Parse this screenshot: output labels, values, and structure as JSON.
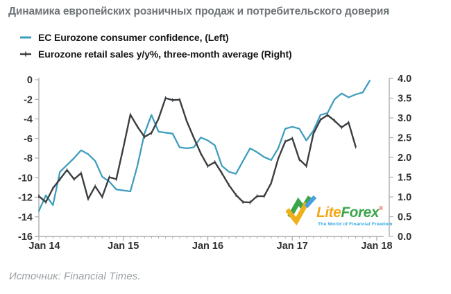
{
  "title": "Динамика европейских розничных продаж и потребительского доверия",
  "legend": [
    {
      "label": "EC Eurozone consumer confidence, (Left)",
      "color": "#3f9dbe",
      "marker": "line"
    },
    {
      "label": "Eurozone retail sales y/y%, three-month average (Right)",
      "color": "#3a3e41",
      "marker": "line-plus"
    }
  ],
  "chart_data": {
    "type": "line",
    "title": "",
    "x_start": "Jan 2014",
    "frequency": "monthly",
    "x_tick_labels": [
      "Jan 14",
      "Jan 15",
      "Jan 16",
      "Jan 17",
      "Jan 18"
    ],
    "left_axis": {
      "label": "EC Eurozone consumer confidence",
      "range": [
        -16,
        0
      ],
      "tick_labels": [
        "0",
        "-2",
        "-4",
        "-6",
        "-8",
        "-10",
        "-12",
        "-14",
        "-16"
      ]
    },
    "right_axis": {
      "label": "Eurozone retail sales y/y%, 3-month average",
      "range": [
        0.0,
        4.0
      ],
      "tick_labels": [
        "4.0",
        "3.5",
        "3.0",
        "2.5",
        "2.0",
        "1.5",
        "1.0",
        "0.5",
        "0.0"
      ]
    },
    "grid": false,
    "legend_position": "top-left",
    "series": [
      {
        "name": "EC Eurozone consumer confidence",
        "axis": "left",
        "color": "#3f9dbe",
        "marker": "none",
        "values": [
          -13.4,
          -11.8,
          -12.8,
          -9.4,
          -8.7,
          -8.0,
          -7.2,
          -7.6,
          -8.3,
          -9.9,
          -10.4,
          -11.2,
          -11.3,
          -11.4,
          -8.8,
          -5.5,
          -3.6,
          -5.3,
          -5.4,
          -5.5,
          -6.9,
          -7.0,
          -6.9,
          -5.9,
          -6.2,
          -6.7,
          -8.8,
          -9.4,
          -9.6,
          -8.3,
          -7.0,
          -7.4,
          -7.9,
          -8.2,
          -7.0,
          -5.0,
          -4.8,
          -5.0,
          -6.2,
          -5.2,
          -3.6,
          -3.4,
          -2.0,
          -1.4,
          -1.8,
          -1.5,
          -1.3,
          -0.1
        ]
      },
      {
        "name": "Eurozone retail sales y/y%, three-month average",
        "axis": "right",
        "color": "#3a3e41",
        "marker": "tick",
        "values": [
          1.02,
          0.87,
          1.22,
          1.45,
          1.68,
          1.45,
          1.6,
          0.95,
          1.27,
          1.0,
          1.5,
          1.45,
          2.25,
          3.08,
          2.78,
          2.52,
          2.62,
          2.98,
          3.5,
          3.45,
          3.46,
          2.92,
          2.5,
          2.1,
          1.78,
          1.88,
          1.6,
          1.3,
          1.05,
          0.87,
          0.86,
          1.02,
          1.02,
          1.35,
          1.97,
          2.4,
          2.48,
          1.95,
          1.78,
          2.6,
          2.95,
          3.07,
          2.93,
          2.76,
          2.88,
          2.27
        ]
      }
    ]
  },
  "logo": {
    "lite": "Lite",
    "forex": "Forex",
    "registered": "®",
    "tagline": "The World of Financial Freedom",
    "lite_color": "#f2a71b",
    "forex_color": "#3aa54a",
    "tagline_color": "#2da9e1"
  },
  "source": "Источник: Financial Times.",
  "colors": {
    "confidence_line": "#3f9dbe",
    "retail_line": "#3a3e41",
    "axis": "#a9adaf",
    "tick_label": "#303030",
    "title": "#6e7478",
    "source": "#9aa0a3"
  }
}
